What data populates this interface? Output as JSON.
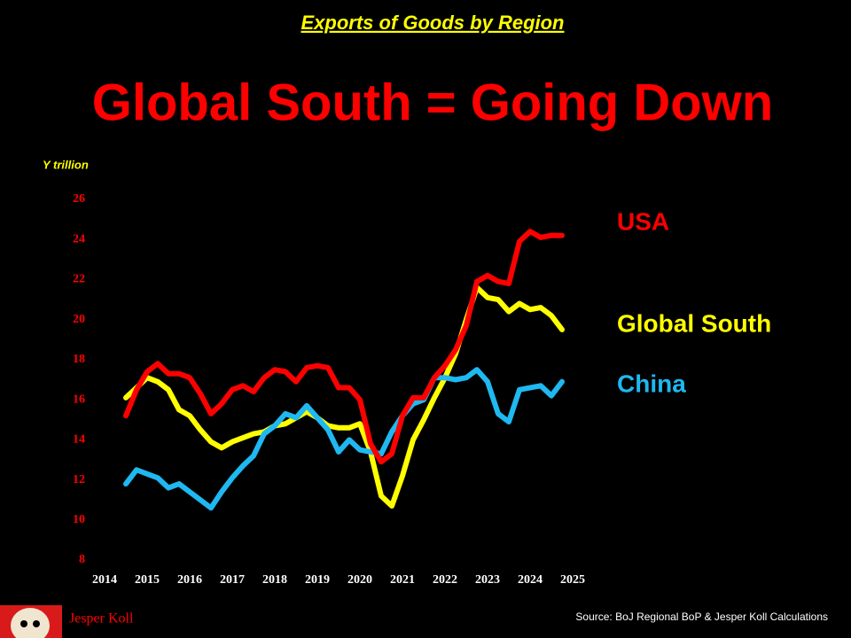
{
  "chart_data": {
    "type": "line",
    "supertitle": "Exports of Goods by Region",
    "title": "Global South = Going Down",
    "y_label": "Y trillion",
    "source": "Source: BoJ Regional BoP & Jesper Koll Calculations",
    "author": "Jesper Koll",
    "x": [
      2014.5,
      2014.75,
      2015,
      2015.25,
      2015.5,
      2015.75,
      2016,
      2016.25,
      2016.5,
      2016.75,
      2017,
      2017.25,
      2017.5,
      2017.75,
      2018,
      2018.25,
      2018.5,
      2018.75,
      2019,
      2019.25,
      2019.5,
      2019.75,
      2020,
      2020.25,
      2020.5,
      2020.75,
      2021,
      2021.25,
      2021.5,
      2021.75,
      2022,
      2022.25,
      2022.5,
      2022.75,
      2023,
      2023.25,
      2023.5,
      2023.75,
      2024,
      2024.25,
      2024.5,
      2024.75
    ],
    "xlim": [
      2014,
      2025
    ],
    "xticks": [
      2014,
      2015,
      2016,
      2017,
      2018,
      2019,
      2020,
      2021,
      2022,
      2023,
      2024,
      2025
    ],
    "ylim": [
      8,
      26
    ],
    "yticks": [
      8,
      10,
      12,
      14,
      16,
      18,
      20,
      22,
      24,
      26
    ],
    "grid": false,
    "series": [
      {
        "name": "USA",
        "color": "#ff0000",
        "values": [
          15.2,
          16.5,
          17.4,
          17.8,
          17.3,
          17.3,
          17.1,
          16.3,
          15.3,
          15.8,
          16.5,
          16.7,
          16.4,
          17.1,
          17.5,
          17.4,
          16.9,
          17.6,
          17.7,
          17.6,
          16.6,
          16.6,
          16.0,
          13.8,
          12.9,
          13.3,
          15.2,
          16.1,
          16.1,
          17.1,
          17.7,
          18.5,
          19.7,
          21.9,
          22.2,
          21.9,
          21.8,
          23.9,
          24.4,
          24.1,
          24.2,
          24.2
        ]
      },
      {
        "name": "Global South",
        "color": "#ffff00",
        "values": [
          16.1,
          16.6,
          17.1,
          16.9,
          16.5,
          15.5,
          15.2,
          14.5,
          13.9,
          13.6,
          13.9,
          14.1,
          14.3,
          14.4,
          14.7,
          14.8,
          15.1,
          15.4,
          15.1,
          14.7,
          14.6,
          14.6,
          14.8,
          13.4,
          11.2,
          10.7,
          12.2,
          14.0,
          15.0,
          16.1,
          17.1,
          18.3,
          20.0,
          21.6,
          21.1,
          21.0,
          20.4,
          20.8,
          20.5,
          20.6,
          20.2,
          19.5
        ]
      },
      {
        "name": "China",
        "color": "#1fb8f0",
        "values": [
          11.8,
          12.5,
          12.3,
          12.1,
          11.6,
          11.8,
          11.4,
          11.0,
          10.6,
          11.4,
          12.1,
          12.7,
          13.2,
          14.3,
          14.7,
          15.3,
          15.1,
          15.7,
          15.1,
          14.5,
          13.4,
          14.0,
          13.5,
          13.4,
          13.3,
          14.4,
          15.2,
          15.8,
          16.0,
          17.1,
          17.1,
          17.0,
          17.1,
          17.5,
          16.9,
          15.3,
          14.9,
          16.5,
          16.6,
          16.7,
          16.2,
          16.9
        ]
      }
    ]
  }
}
